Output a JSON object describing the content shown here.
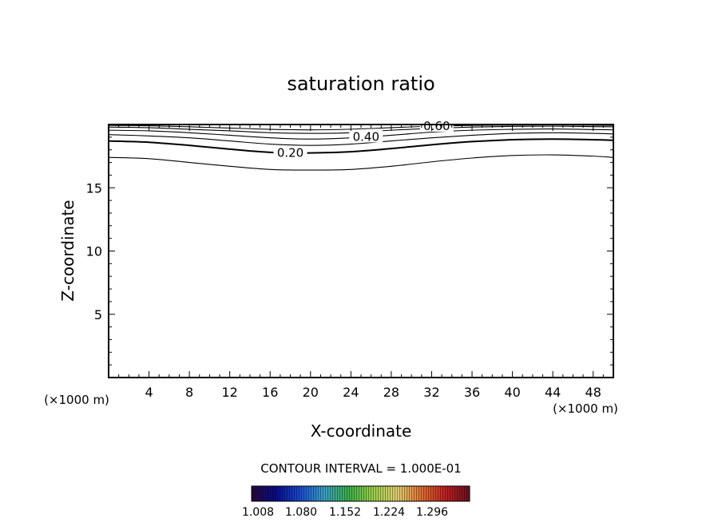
{
  "chart_data": {
    "type": "contour",
    "title": "saturation ratio",
    "xlabel": "X-coordinate",
    "ylabel": "Z-coordinate",
    "x_unit_left": "(×1000 m)",
    "x_unit_right": "(×1000 m)",
    "xlim": [
      0,
      50
    ],
    "ylim": [
      0,
      20
    ],
    "x_ticks": [
      4,
      8,
      12,
      16,
      20,
      24,
      28,
      32,
      36,
      40,
      44,
      48
    ],
    "y_ticks": [
      5,
      10,
      15
    ],
    "contour_interval_text": "CONTOUR INTERVAL = 1.000E-01",
    "contours": [
      {
        "level": 0.1,
        "label": "",
        "bold": false,
        "x": [
          0,
          4,
          8,
          12,
          16,
          20,
          24,
          28,
          32,
          36,
          40,
          44,
          48,
          50
        ],
        "y": [
          17.4,
          17.3,
          17.0,
          16.7,
          16.45,
          16.4,
          16.45,
          16.7,
          17.05,
          17.35,
          17.55,
          17.6,
          17.5,
          17.4
        ]
      },
      {
        "level": 0.2,
        "label": "0.20",
        "bold": true,
        "x": [
          0,
          4,
          8,
          12,
          16,
          20,
          24,
          28,
          32,
          36,
          40,
          44,
          48,
          50
        ],
        "y": [
          18.7,
          18.6,
          18.35,
          18.05,
          17.8,
          17.75,
          17.85,
          18.1,
          18.4,
          18.65,
          18.8,
          18.85,
          18.8,
          18.75
        ]
      },
      {
        "level": 0.3,
        "label": "",
        "bold": false,
        "x": [
          0,
          4,
          8,
          12,
          16,
          20,
          24,
          28,
          32,
          36,
          40,
          44,
          48,
          50
        ],
        "y": [
          19.2,
          19.1,
          18.95,
          18.7,
          18.45,
          18.35,
          18.45,
          18.7,
          18.95,
          19.15,
          19.3,
          19.35,
          19.3,
          19.25
        ]
      },
      {
        "level": 0.4,
        "label": "0.40",
        "bold": false,
        "x": [
          0,
          4,
          8,
          12,
          16,
          20,
          24,
          28,
          32,
          36,
          40,
          44,
          48,
          50
        ],
        "y": [
          19.55,
          19.5,
          19.35,
          19.15,
          18.95,
          18.85,
          18.95,
          19.15,
          19.4,
          19.55,
          19.62,
          19.65,
          19.6,
          19.58
        ]
      },
      {
        "level": 0.5,
        "label": "",
        "bold": false,
        "x": [
          0,
          4,
          8,
          12,
          16,
          20,
          24,
          28,
          32,
          36,
          40,
          44,
          48,
          50
        ],
        "y": [
          19.8,
          19.75,
          19.62,
          19.5,
          19.35,
          19.3,
          19.35,
          19.55,
          19.7,
          19.8,
          19.85,
          19.87,
          19.83,
          19.82
        ]
      },
      {
        "level": 0.6,
        "label": "0.60",
        "bold": false,
        "x": [
          0,
          4,
          8,
          12,
          16,
          20,
          24,
          28,
          32,
          36,
          40,
          44,
          48,
          50
        ],
        "y": [
          19.93,
          19.9,
          19.82,
          19.72,
          19.62,
          19.58,
          19.63,
          19.75,
          19.87,
          19.93,
          19.95,
          19.97,
          19.94,
          19.93
        ]
      }
    ],
    "colorbar": {
      "tick_labels": [
        "1.008",
        "1.080",
        "1.152",
        "1.224",
        "1.296"
      ],
      "colors": [
        "#2a0a3a",
        "#0a0a8a",
        "#1a4ad0",
        "#3aa0c8",
        "#3ab04a",
        "#9ad04a",
        "#e0d070",
        "#e07030",
        "#c02020",
        "#6a1020"
      ]
    }
  }
}
